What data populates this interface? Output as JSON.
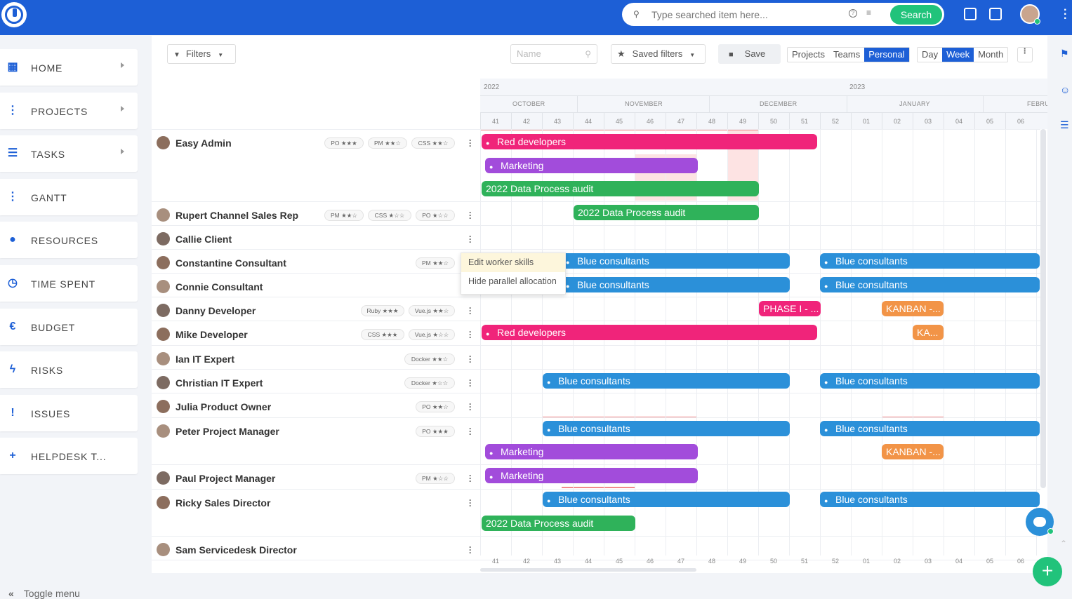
{
  "topbar": {
    "search_placeholder": "Type searched item here...",
    "search_button": "Search",
    "help_glyph": "?"
  },
  "sidebar": {
    "items": [
      {
        "label": "HOME",
        "icon": "dashboard-icon",
        "glyph": "▦",
        "has_chevron": true
      },
      {
        "label": "PROJECTS",
        "icon": "project-tree-icon",
        "glyph": "⋮",
        "has_chevron": true
      },
      {
        "label": "TASKS",
        "icon": "clipboard-icon",
        "glyph": "☰",
        "has_chevron": true
      },
      {
        "label": "GANTT",
        "icon": "gantt-icon",
        "glyph": "⋮",
        "has_chevron": false
      },
      {
        "label": "RESOURCES",
        "icon": "person-icon",
        "glyph": "●",
        "has_chevron": false
      },
      {
        "label": "TIME SPENT",
        "icon": "stopwatch-icon",
        "glyph": "◷",
        "has_chevron": false
      },
      {
        "label": "BUDGET",
        "icon": "euro-icon",
        "glyph": "€",
        "has_chevron": false
      },
      {
        "label": "RISKS",
        "icon": "lightning-icon",
        "glyph": "ϟ",
        "has_chevron": false
      },
      {
        "label": "ISSUES",
        "icon": "alert-icon",
        "glyph": "!",
        "has_chevron": false
      },
      {
        "label": "HELPDESK T...",
        "icon": "plus-square-icon",
        "glyph": "+",
        "has_chevron": false
      }
    ],
    "toggle_label": "Toggle menu",
    "toggle_glyph": "«"
  },
  "toolbar": {
    "filters": "Filters",
    "name_placeholder": "Name",
    "saved_filters": "Saved filters",
    "save": "Save",
    "scope": [
      "Projects",
      "Teams",
      "Personal"
    ],
    "scope_active": "Personal",
    "zoom": [
      "Day",
      "Week",
      "Month"
    ],
    "zoom_active": "Week"
  },
  "timeline": {
    "years": [
      "2022",
      "2023"
    ],
    "months": [
      "OCTOBER",
      "NOVEMBER",
      "DECEMBER",
      "JANUARY",
      "FEBRU"
    ],
    "weeks": [
      "41",
      "42",
      "43",
      "44",
      "45",
      "46",
      "47",
      "48",
      "49",
      "50",
      "51",
      "52",
      "01",
      "02",
      "03",
      "04",
      "05",
      "06"
    ]
  },
  "popup": {
    "items": [
      "Edit worker skills",
      "Hide parallel allocation"
    ]
  },
  "rows": [
    {
      "name": "Easy Admin",
      "skills": [
        "PO ★★★",
        "PM ★★☆",
        "CSS ★★☆"
      ],
      "bars": [
        {
          "label": "Red developers",
          "color": "#f0247a",
          "icon": true
        },
        {
          "label": "Marketing",
          "color": "#a24cdb",
          "icon": true
        },
        {
          "label": "2022 Data Process audit",
          "color": "#2fb25a",
          "icon": false
        }
      ]
    },
    {
      "name": "Rupert Channel Sales Rep",
      "skills": [
        "PM ★★☆",
        "CSS ★☆☆",
        "PO ★☆☆"
      ],
      "bars": [
        {
          "label": "2022 Data Process audit",
          "color": "#2fb25a",
          "icon": false
        }
      ]
    },
    {
      "name": "Callie Client",
      "skills": [],
      "bars": []
    },
    {
      "name": "Constantine Consultant",
      "skills": [
        "PM ★★☆"
      ],
      "bars": [
        {
          "label": "Blue consultants",
          "color": "#2b90d9",
          "icon": true
        },
        {
          "label": "Blue consultants",
          "color": "#2b90d9",
          "icon": true
        }
      ]
    },
    {
      "name": "Connie Consultant",
      "skills": [],
      "bars": [
        {
          "label": "Blue consultants",
          "color": "#2b90d9",
          "icon": true
        },
        {
          "label": "Blue consultants",
          "color": "#2b90d9",
          "icon": true
        }
      ]
    },
    {
      "name": "Danny Developer",
      "skills": [
        "Ruby ★★★",
        "Vue.js ★★☆"
      ],
      "bars": [
        {
          "label": "PHASE I - ...",
          "color": "#f0247a",
          "icon": false
        },
        {
          "label": "KANBAN -...",
          "color": "#f29447",
          "icon": false
        }
      ]
    },
    {
      "name": "Mike Developer",
      "skills": [
        "CSS ★★★",
        "Vue.js ★☆☆"
      ],
      "bars": [
        {
          "label": "Red developers",
          "color": "#f0247a",
          "icon": true
        },
        {
          "label": "KA...",
          "color": "#f29447",
          "icon": false
        }
      ]
    },
    {
      "name": "Ian IT Expert",
      "skills": [
        "Docker ★★☆"
      ],
      "bars": []
    },
    {
      "name": "Christian IT Expert",
      "skills": [
        "Docker ★☆☆"
      ],
      "bars": [
        {
          "label": "Blue consultants",
          "color": "#2b90d9",
          "icon": true
        },
        {
          "label": "Blue consultants",
          "color": "#2b90d9",
          "icon": true
        }
      ]
    },
    {
      "name": "Julia Product Owner",
      "skills": [
        "PO ★★☆"
      ],
      "bars": []
    },
    {
      "name": "Peter Project Manager",
      "skills": [
        "PO ★★★"
      ],
      "bars": [
        {
          "label": "Blue consultants",
          "color": "#2b90d9",
          "icon": true
        },
        {
          "label": "Blue consultants",
          "color": "#2b90d9",
          "icon": true
        },
        {
          "label": "Marketing",
          "color": "#a24cdb",
          "icon": true
        },
        {
          "label": "KANBAN -...",
          "color": "#f29447",
          "icon": false
        }
      ]
    },
    {
      "name": "Paul Project Manager",
      "skills": [
        "PM ★☆☆"
      ],
      "bars": [
        {
          "label": "Marketing",
          "color": "#a24cdb",
          "icon": true
        }
      ]
    },
    {
      "name": "Ricky Sales Director",
      "skills": [],
      "bars": [
        {
          "label": "Blue consultants",
          "color": "#2b90d9",
          "icon": true
        },
        {
          "label": "Blue consultants",
          "color": "#2b90d9",
          "icon": true
        },
        {
          "label": "2022 Data Process audit",
          "color": "#2fb25a",
          "icon": false
        }
      ]
    },
    {
      "name": "Sam Servicedesk Director",
      "skills": [],
      "bars": []
    }
  ]
}
